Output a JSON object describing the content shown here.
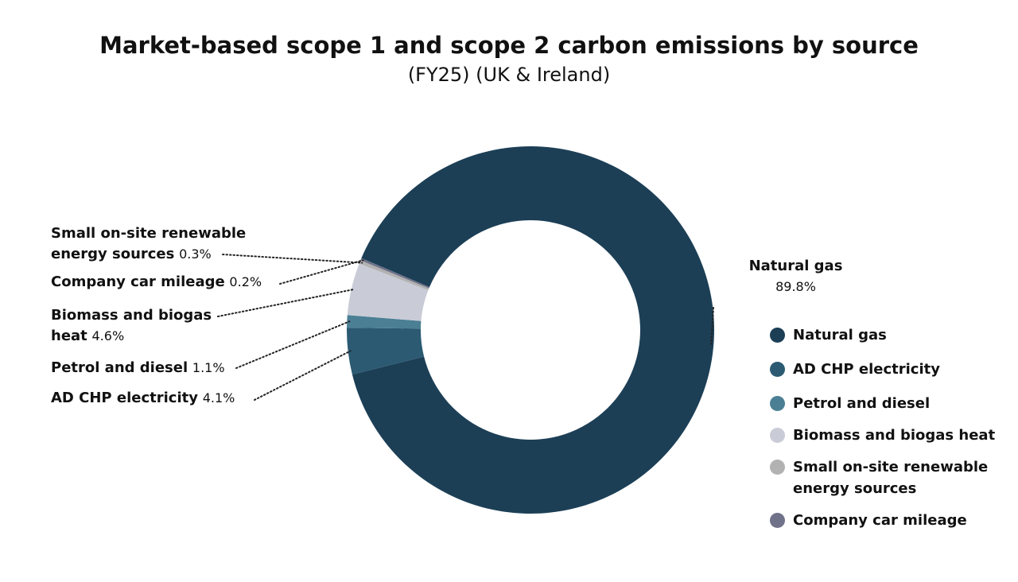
{
  "chart_data": {
    "type": "donut",
    "title": "Market-based scope 1 and scope 2 carbon emissions by source",
    "subtitle": "(FY25) (UK & Ireland)",
    "categories": [
      "Natural gas",
      "AD CHP electricity",
      "Petrol and diesel",
      "Biomass and biogas heat",
      "Small on-site renewable energy sources",
      "Company car mileage"
    ],
    "values": [
      89.8,
      4.1,
      1.1,
      4.6,
      0.3,
      0.2
    ],
    "value_labels": [
      "89.8%",
      "4.1%",
      "1.1%",
      "4.6%",
      "0.3%",
      "0.2%"
    ],
    "colors": [
      "#1c3f56",
      "#2b5a72",
      "#4b7f94",
      "#c9ccd6",
      "#b2b2b2",
      "#6f7289"
    ],
    "legend": "right"
  }
}
